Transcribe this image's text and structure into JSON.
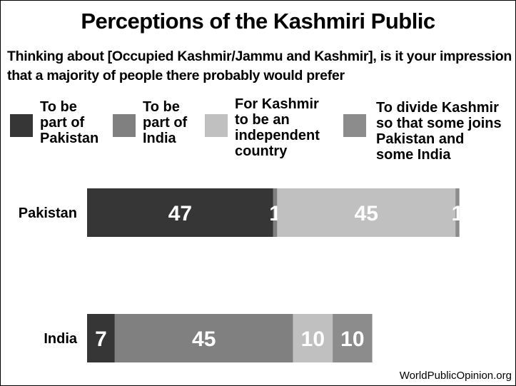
{
  "chart_data": {
    "type": "bar",
    "stacked": true,
    "orientation": "horizontal",
    "title": "Perceptions of the Kashmiri Public",
    "subtitle": "Thinking about [Occupied Kashmir/Jammu and Kashmir], is it your impression that a majority of people there probably would prefer",
    "categories": [
      "Pakistan",
      "India"
    ],
    "series": [
      {
        "name": "To be part of Pakistan",
        "legend_lines": [
          "To be",
          "part of",
          "Pakistan"
        ],
        "color": "#363636",
        "values": [
          47,
          7
        ],
        "value_labels": [
          "47",
          "7"
        ]
      },
      {
        "name": "To be part of India",
        "legend_lines": [
          "To be",
          "part of",
          "India"
        ],
        "color": "#808080",
        "values": [
          1,
          45
        ],
        "value_labels": [
          "1",
          "45"
        ]
      },
      {
        "name": "For Kashmir to be an independent country",
        "legend_lines": [
          "For Kashmir",
          "to be an",
          "independent",
          "country"
        ],
        "color": "#c0c0c0",
        "values": [
          45,
          10
        ],
        "value_labels": [
          "45",
          "10"
        ]
      },
      {
        "name": "To divide Kashmir so that some joins Pakistan and some India",
        "legend_lines": [
          "To divide Kashmir",
          "so that some joins",
          "Pakistan and",
          "some India"
        ],
        "color": "#8c8c8c",
        "values": [
          1,
          10
        ],
        "value_labels": [
          "1",
          "10"
        ]
      }
    ],
    "grid": false,
    "legend_position": "top"
  },
  "footer": {
    "source": "WorldPublicOpinion.org"
  }
}
